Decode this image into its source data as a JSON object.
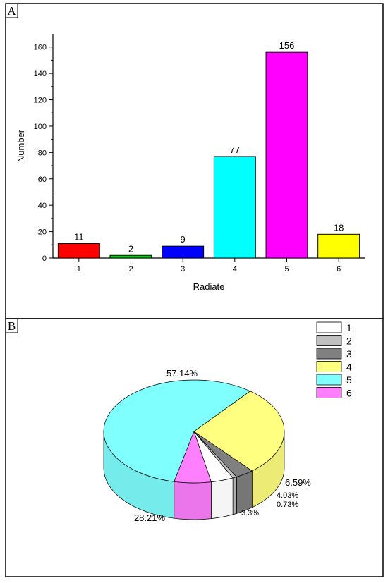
{
  "chart_data": [
    {
      "panel": "A",
      "type": "bar",
      "categories": [
        "1",
        "2",
        "3",
        "4",
        "5",
        "6"
      ],
      "values": [
        11,
        2,
        9,
        77,
        156,
        18
      ],
      "colors": [
        "#ff0000",
        "#00cc00",
        "#0000ff",
        "#00ffff",
        "#ff00ff",
        "#ffff00"
      ],
      "xlabel": "Radiate",
      "ylabel": "Number",
      "ylim": [
        0,
        170
      ],
      "yticks": [
        0,
        20,
        40,
        60,
        80,
        100,
        120,
        140,
        160
      ],
      "data_labels": [
        "11",
        "2",
        "9",
        "77",
        "156",
        "18"
      ],
      "grid": false
    },
    {
      "panel": "B",
      "type": "pie",
      "style": "3d",
      "labels": [
        "1",
        "2",
        "3",
        "4",
        "5",
        "6"
      ],
      "values": [
        4.03,
        0.73,
        3.3,
        28.21,
        57.14,
        6.59
      ],
      "value_labels": [
        "4.03%",
        "0.73%",
        "3.3%",
        "28.21%",
        "57.14%",
        "6.59%"
      ],
      "colors": [
        "#ffffff",
        "#c0c0c0",
        "#808080",
        "#ffff80",
        "#80ffff",
        "#ff80ff"
      ],
      "legend": "top-right"
    }
  ]
}
